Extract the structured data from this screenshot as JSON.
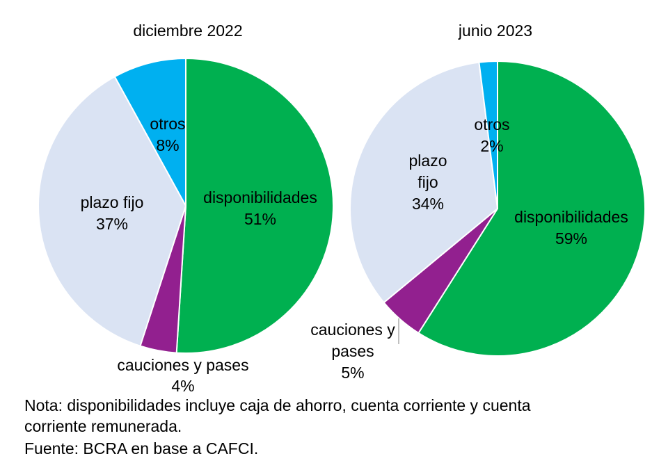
{
  "chart_data": [
    {
      "type": "pie",
      "title": "diciembre 2022",
      "categories": [
        "disponibilidades",
        "cauciones y pases",
        "plazo fijo",
        "otros"
      ],
      "values": [
        51,
        4,
        37,
        8
      ],
      "data_labels": [
        "51%",
        "4%",
        "37%",
        "8%"
      ],
      "colors": [
        "#00B050",
        "#92208F",
        "#DAE3F3",
        "#00B0F0"
      ],
      "start": "12 o'clock, clockwise"
    },
    {
      "type": "pie",
      "title": "junio 2023",
      "categories": [
        "disponibilidades",
        "cauciones y pases",
        "plazo fijo",
        "otros"
      ],
      "values": [
        59,
        5,
        34,
        2
      ],
      "data_labels": [
        "59%",
        "5%",
        "34%",
        "2%"
      ],
      "colors": [
        "#00B050",
        "#92208F",
        "#DAE3F3",
        "#00B0F0"
      ],
      "start": "12 o'clock, clockwise"
    }
  ],
  "labels2": {
    "cauciones_l1": "cauciones y",
    "cauciones_l2": "pases",
    "plazo_l1": "plazo",
    "plazo_l2": "fijo"
  },
  "notes": {
    "nota_l1": "Nota: disponibilidades incluye caja de ahorro, cuenta corriente y cuenta",
    "nota_l2": "corriente remunerada.",
    "fuente": "Fuente: BCRA en base a CAFCI."
  }
}
